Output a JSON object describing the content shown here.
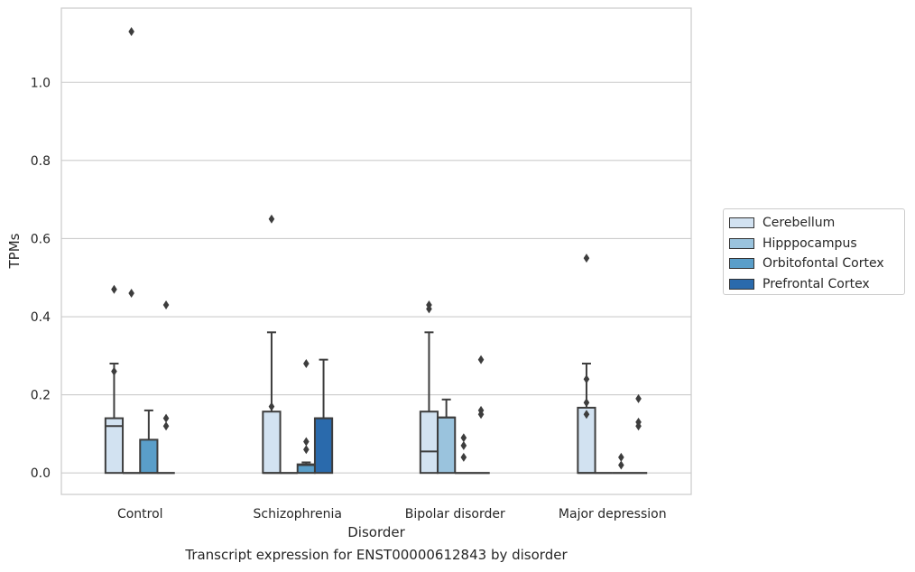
{
  "chart_data": {
    "type": "box",
    "xlabel": "Disorder",
    "ylabel": "TPMs",
    "caption": "Transcript expression for ENST00000612843 by disorder",
    "categories": [
      "Control",
      "Schizophrenia",
      "Bipolar disorder",
      "Major depression"
    ],
    "ylim": [
      -0.055,
      1.19
    ],
    "yticks": [
      0.0,
      0.2,
      0.4,
      0.6,
      0.8,
      1.0
    ],
    "ytick_labels": [
      "0.0",
      "0.2",
      "0.4",
      "0.6",
      "0.8",
      "1.0"
    ],
    "grid": true,
    "legend_position": "right",
    "series": [
      {
        "name": "Cerebellum",
        "color": "#d2e2f1",
        "boxes": [
          {
            "q1": 0.0,
            "median": 0.12,
            "q3": 0.14,
            "whisker_low": 0.0,
            "whisker_high": 0.28,
            "outliers": [
              0.47,
              0.26
            ]
          },
          {
            "q1": 0.0,
            "median": 0.0,
            "q3": 0.157,
            "whisker_low": 0.0,
            "whisker_high": 0.36,
            "outliers": [
              0.65,
              0.17
            ]
          },
          {
            "q1": 0.0,
            "median": 0.055,
            "q3": 0.157,
            "whisker_low": 0.0,
            "whisker_high": 0.36,
            "outliers": [
              0.43,
              0.42
            ]
          },
          {
            "q1": 0.0,
            "median": 0.0,
            "q3": 0.167,
            "whisker_low": 0.0,
            "whisker_high": 0.28,
            "outliers": [
              0.55,
              0.24,
              0.18,
              0.15
            ]
          }
        ]
      },
      {
        "name": "Hipppocampus",
        "color": "#9ac3dd",
        "boxes": [
          {
            "q1": 0.0,
            "median": 0.0,
            "q3": 0.0,
            "whisker_low": 0.0,
            "whisker_high": 0.0,
            "outliers": [
              1.13,
              0.46
            ]
          },
          {
            "q1": 0.0,
            "median": 0.0,
            "q3": 0.0,
            "whisker_low": 0.0,
            "whisker_high": 0.0,
            "outliers": []
          },
          {
            "q1": 0.0,
            "median": 0.142,
            "q3": 0.142,
            "whisker_low": 0.0,
            "whisker_high": 0.188,
            "outliers": []
          },
          {
            "q1": 0.0,
            "median": 0.0,
            "q3": 0.0,
            "whisker_low": 0.0,
            "whisker_high": 0.0,
            "outliers": []
          }
        ]
      },
      {
        "name": "Orbitofontal Cortex",
        "color": "#5a9ec9",
        "boxes": [
          {
            "q1": 0.0,
            "median": 0.0,
            "q3": 0.085,
            "whisker_low": 0.0,
            "whisker_high": 0.16,
            "outliers": []
          },
          {
            "q1": 0.0,
            "median": 0.02,
            "q3": 0.022,
            "whisker_low": 0.0,
            "whisker_high": 0.027,
            "outliers": [
              0.28,
              0.08,
              0.06
            ]
          },
          {
            "q1": 0.0,
            "median": 0.0,
            "q3": 0.0,
            "whisker_low": 0.0,
            "whisker_high": 0.0,
            "outliers": [
              0.09,
              0.07,
              0.04
            ]
          },
          {
            "q1": 0.0,
            "median": 0.0,
            "q3": 0.0,
            "whisker_low": 0.0,
            "whisker_high": 0.0,
            "outliers": [
              0.04,
              0.02
            ]
          }
        ]
      },
      {
        "name": "Prefrontal Cortex",
        "color": "#2a6aac",
        "boxes": [
          {
            "q1": 0.0,
            "median": 0.0,
            "q3": 0.0,
            "whisker_low": 0.0,
            "whisker_high": 0.0,
            "outliers": [
              0.43,
              0.14,
              0.12
            ]
          },
          {
            "q1": 0.0,
            "median": 0.14,
            "q3": 0.14,
            "whisker_low": 0.0,
            "whisker_high": 0.29,
            "outliers": []
          },
          {
            "q1": 0.0,
            "median": 0.0,
            "q3": 0.0,
            "whisker_low": 0.0,
            "whisker_high": 0.0,
            "outliers": [
              0.29,
              0.16,
              0.15
            ]
          },
          {
            "q1": 0.0,
            "median": 0.0,
            "q3": 0.0,
            "whisker_low": 0.0,
            "whisker_high": 0.0,
            "outliers": [
              0.19,
              0.13,
              0.12
            ]
          }
        ]
      }
    ]
  }
}
